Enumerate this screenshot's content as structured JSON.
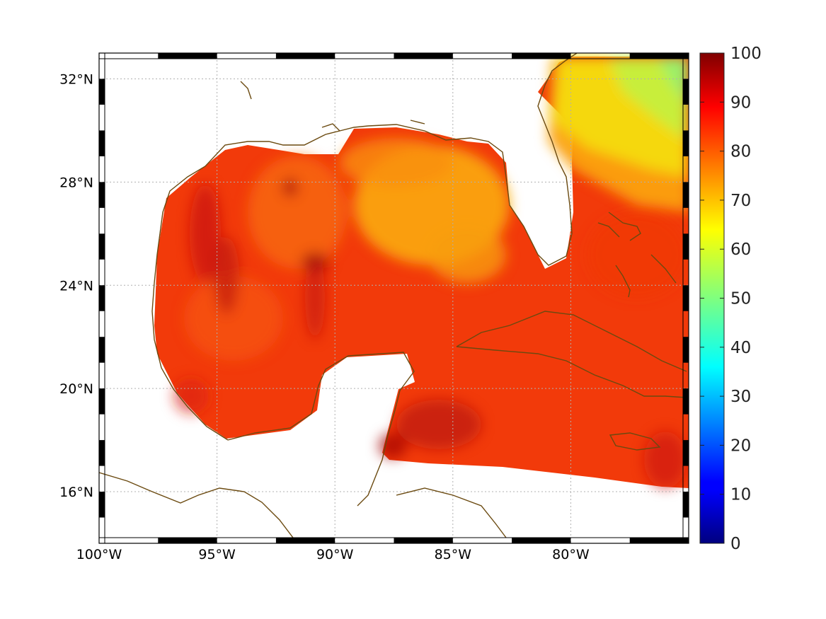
{
  "chart_data": {
    "type": "heatmap",
    "title": "",
    "xlabel": "",
    "ylabel": "",
    "xlim": [
      -100,
      -75
    ],
    "ylim": [
      14,
      33
    ],
    "x_ticks": [
      {
        "value": -100,
        "label": "100°W"
      },
      {
        "value": -95,
        "label": "95°W"
      },
      {
        "value": -90,
        "label": "90°W"
      },
      {
        "value": -85,
        "label": "85°W"
      },
      {
        "value": -80,
        "label": "80°W"
      }
    ],
    "y_ticks": [
      {
        "value": 16,
        "label": "16°N"
      },
      {
        "value": 20,
        "label": "20°N"
      },
      {
        "value": 24,
        "label": "24°N"
      },
      {
        "value": 28,
        "label": "28°N"
      },
      {
        "value": 32,
        "label": "32°N"
      }
    ],
    "grid": true,
    "colorbar": {
      "colormap": "jet",
      "range": [
        0,
        100
      ],
      "ticks": [
        {
          "value": 0,
          "label": "0"
        },
        {
          "value": 10,
          "label": "10"
        },
        {
          "value": 20,
          "label": "20"
        },
        {
          "value": 30,
          "label": "30"
        },
        {
          "value": 40,
          "label": "40"
        },
        {
          "value": 50,
          "label": "50"
        },
        {
          "value": 60,
          "label": "60"
        },
        {
          "value": 70,
          "label": "70"
        },
        {
          "value": 80,
          "label": "80"
        },
        {
          "value": 90,
          "label": "90"
        },
        {
          "value": 100,
          "label": "100"
        }
      ]
    },
    "field_summary": {
      "gulf_typical": 82,
      "east_gulf_typical": 73,
      "caribbean_typical": 85,
      "atlantic_northeast_min": 57,
      "max": 95
    },
    "land_color": "#ffffff",
    "coastline_color": "#6b4a10"
  }
}
